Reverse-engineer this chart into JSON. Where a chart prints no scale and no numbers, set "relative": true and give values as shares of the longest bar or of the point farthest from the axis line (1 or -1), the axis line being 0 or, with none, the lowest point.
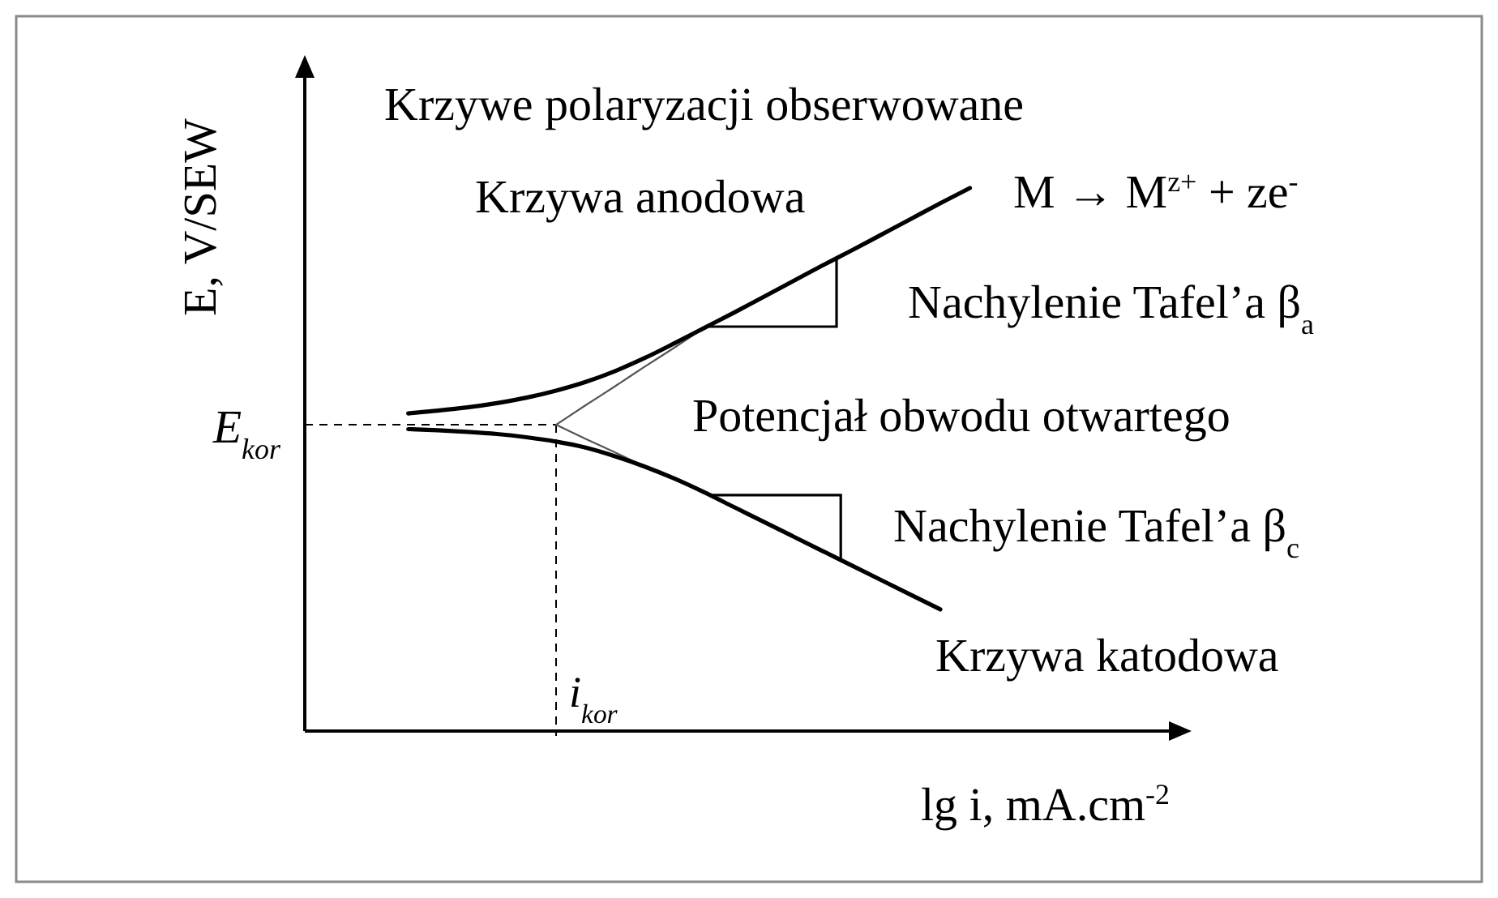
{
  "chart_data": {
    "type": "line",
    "relative": true,
    "title": "Krzywe polaryzacji obserwowane",
    "xlabel": "lg i, mA.cm$^{-2}$",
    "ylabel": "E, V/SEW",
    "categories": [
      null,
      null,
      null,
      null,
      null,
      null,
      null,
      null,
      null,
      null,
      null,
      null,
      null,
      null,
      null,
      null,
      null,
      null,
      null,
      null,
      null,
      null,
      null,
      null,
      null,
      null,
      null,
      null,
      null,
      null
    ],
    "series": [
      {
        "color": "#000000",
        "values": [
          null,
          null,
          null,
          0.585,
          0.59,
          0.596,
          0.604,
          0.614,
          0.627,
          0.643,
          0.663,
          0.687,
          0.714,
          0.742,
          0.77,
          0.799,
          0.828,
          0.857,
          0.885,
          0.914,
          0.943,
          0.972,
          1,
          null,
          null,
          null,
          null,
          null,
          null,
          null
        ]
      },
      {
        "color": "#000000",
        "values": [
          null,
          null,
          null,
          0.556,
          0.554,
          0.551,
          0.547,
          0.541,
          0.533,
          0.522,
          0.506,
          0.487,
          0.465,
          0.44,
          0.413,
          0.386,
          0.359,
          0.332,
          0.305,
          0.278,
          0.251,
          0.224,
          null,
          null,
          null,
          null,
          null,
          null,
          null,
          null
        ]
      },
      {
        "color": "#555555",
        "values": [
          null,
          null,
          null,
          null,
          null,
          null,
          null,
          null,
          0.564,
          0.6,
          0.635,
          0.671,
          0.706,
          0.742,
          null,
          null,
          null,
          null,
          null,
          null,
          null,
          null,
          null,
          null,
          null,
          null,
          null,
          null,
          null,
          null
        ]
      },
      {
        "color": "#555555",
        "values": [
          null,
          null,
          null,
          null,
          null,
          null,
          null,
          null,
          0.564,
          0.538,
          0.513,
          0.487,
          null,
          null,
          null,
          null,
          null,
          null,
          null,
          null,
          null,
          null,
          null,
          null,
          null,
          null,
          null,
          null,
          null,
          null
        ]
      }
    ],
    "ref_lines": [
      {
        "axis": "y",
        "value": 0.564,
        "label": "E$_{kor}$",
        "line_style": "dashed",
        "color": "#000000"
      }
    ],
    "annotations": [
      "Krzywa anodowa",
      "M → M$^{z+}$ + ze$^{-}$",
      "Nachylenie Tafel’a β$_{a}$",
      "Potencjał obwodu otwartego",
      "Nachylenie Tafel’a β$_{c}$",
      "Krzywa katodowa",
      "i$_{kor}$"
    ]
  }
}
